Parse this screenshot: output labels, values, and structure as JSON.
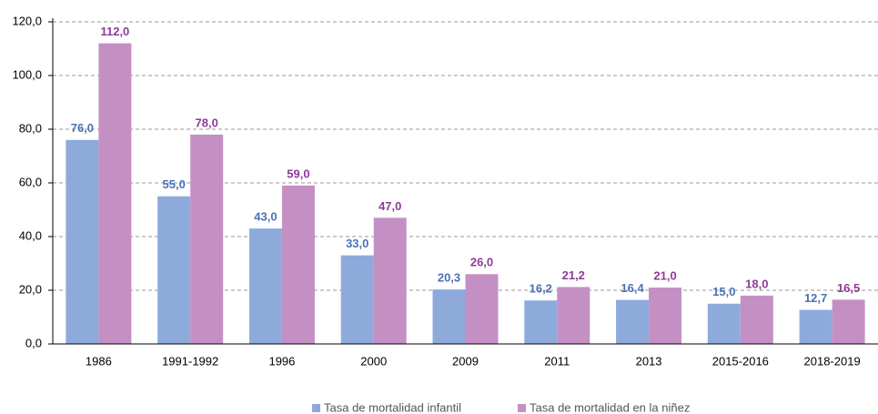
{
  "chart_data": {
    "type": "bar",
    "categories": [
      "1986",
      "1991-1992",
      "1996",
      "2000",
      "2009",
      "2011",
      "2013",
      "2015-2016",
      "2018-2019"
    ],
    "series": [
      {
        "name": "Tasa de mortalidad infantil",
        "color": "#8eaadb",
        "label_color": "#4a72b8",
        "values": [
          76.0,
          55.0,
          43.0,
          33.0,
          20.3,
          16.2,
          16.4,
          15.0,
          12.7
        ],
        "value_labels": [
          "76,0",
          "55,0",
          "43,0",
          "33,0",
          "20,3",
          "16,2",
          "16,4",
          "15,0",
          "12,7"
        ]
      },
      {
        "name": "Tasa de mortalidad en la niñez",
        "color": "#c490c4",
        "label_color": "#8e3b98",
        "values": [
          112.0,
          78.0,
          59.0,
          47.0,
          26.0,
          21.2,
          21.0,
          18.0,
          16.5
        ],
        "value_labels": [
          "112,0",
          "78,0",
          "59,0",
          "47,0",
          "26,0",
          "21,2",
          "21,0",
          "18,0",
          "16,5"
        ]
      }
    ],
    "ylim": [
      0,
      120
    ],
    "yticks": [
      {
        "value": 0,
        "label": "0,0"
      },
      {
        "value": 20,
        "label": "20,0"
      },
      {
        "value": 40,
        "label": "40,0"
      },
      {
        "value": 60,
        "label": "60,0"
      },
      {
        "value": 80,
        "label": "80,0"
      },
      {
        "value": 100,
        "label": "100,0"
      },
      {
        "value": 120,
        "label": "120,0"
      }
    ],
    "grid": true
  }
}
